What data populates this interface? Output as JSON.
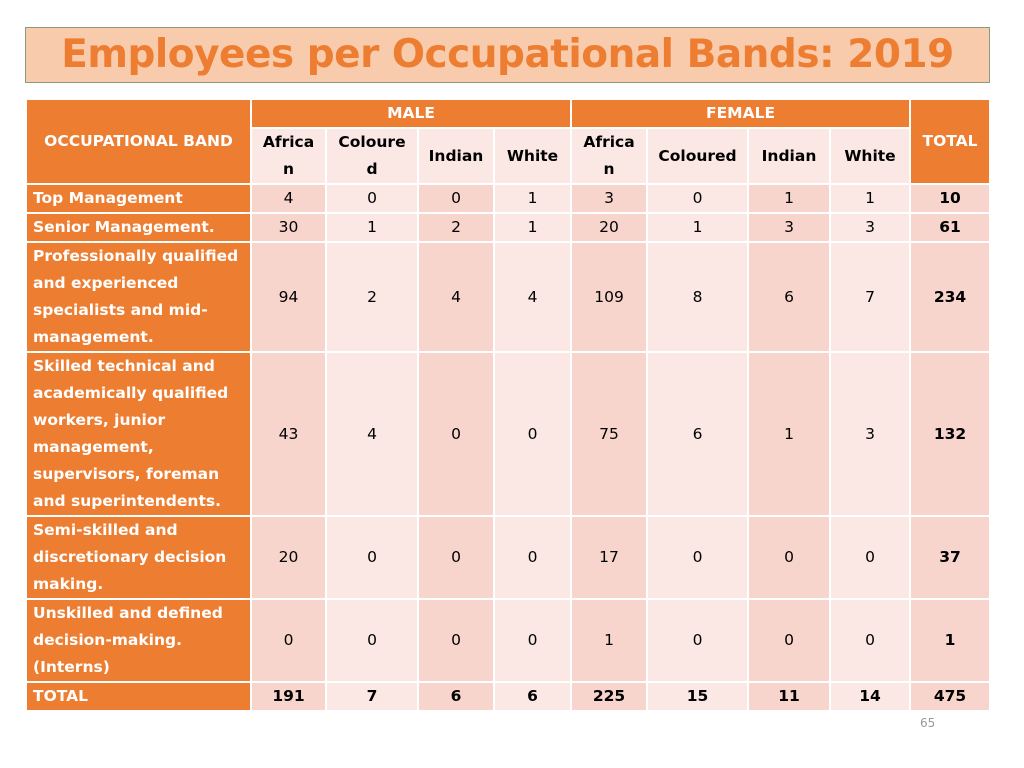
{
  "title": "Employees per Occupational Bands: 2019",
  "table": {
    "band_header": "OCCUPATIONAL BAND",
    "groups": [
      "MALE",
      "FEMALE"
    ],
    "total_header": "TOTAL",
    "columns": [
      "African",
      "Coloured",
      "Indian",
      "White",
      "African",
      "Coloured",
      "Indian",
      "White"
    ],
    "rows": [
      {
        "label": "Top Management",
        "values": [
          4,
          0,
          0,
          1,
          3,
          0,
          1,
          1
        ],
        "total": 10
      },
      {
        "label": "Senior Management.",
        "values": [
          30,
          1,
          2,
          1,
          20,
          1,
          3,
          3
        ],
        "total": 61
      },
      {
        "label": "Professionally qualified and experienced specialists and mid-management.",
        "values": [
          94,
          2,
          4,
          4,
          109,
          8,
          6,
          7
        ],
        "total": 234
      },
      {
        "label": "Skilled technical and academically qualified workers, junior management, supervisors, foreman and superintendents.",
        "values": [
          43,
          4,
          0,
          0,
          75,
          6,
          1,
          3
        ],
        "total": 132
      },
      {
        "label": "Semi-skilled and discretionary decision making.",
        "values": [
          20,
          0,
          0,
          0,
          17,
          0,
          0,
          0
        ],
        "total": 37
      },
      {
        "label": "Unskilled and defined decision-making. (Interns)",
        "values": [
          0,
          0,
          0,
          0,
          1,
          0,
          0,
          0
        ],
        "total": 1
      }
    ],
    "total_row": {
      "label": "TOTAL",
      "values": [
        191,
        7,
        6,
        6,
        225,
        15,
        11,
        14
      ],
      "total": 475
    }
  },
  "page_number": "65"
}
